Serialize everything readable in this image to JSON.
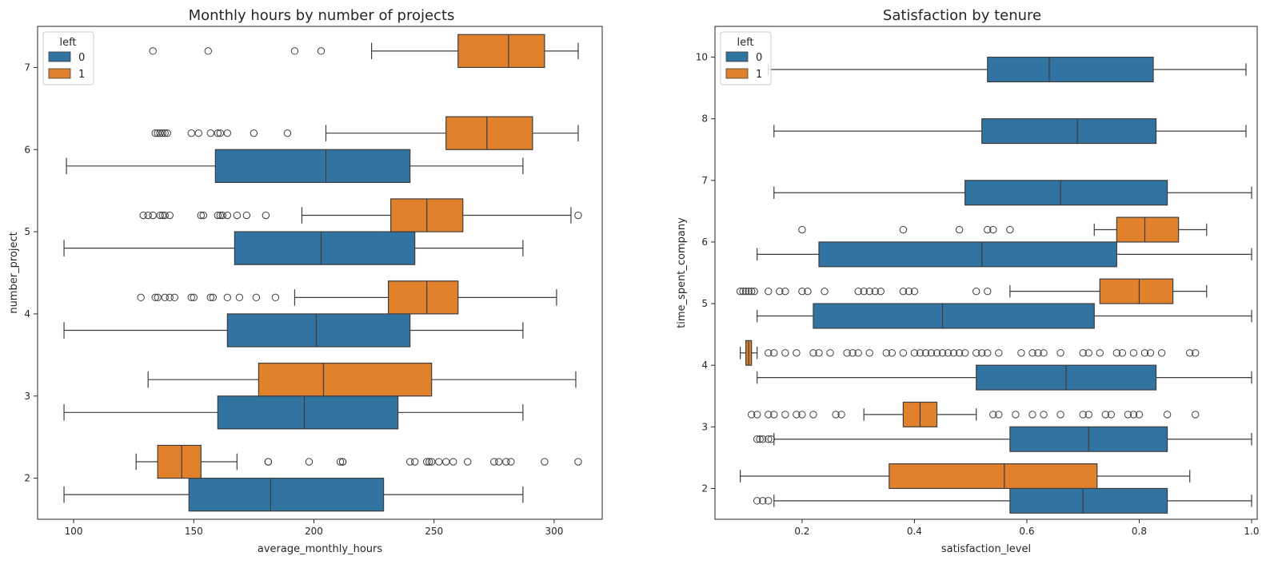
{
  "colors": {
    "left_0": "#3274a1",
    "left_1": "#e1812c",
    "line": "#3d3d3d"
  },
  "chart_data": [
    {
      "type": "boxplot",
      "orientation": "horizontal",
      "title": "Monthly hours by number of projects",
      "xlabel": "average_monthly_hours",
      "ylabel": "number_project",
      "xlim": [
        85,
        320
      ],
      "xticks": [
        100,
        150,
        200,
        250,
        300
      ],
      "categories": [
        "2",
        "3",
        "4",
        "5",
        "6",
        "7"
      ],
      "legend": {
        "title": "left",
        "placement": "upper-left",
        "entries": [
          "0",
          "1"
        ]
      },
      "series": [
        {
          "name": "0",
          "boxes": [
            {
              "category": "2",
              "whislo": 96,
              "q1": 148,
              "med": 182,
              "q3": 229,
              "whishi": 287,
              "fliers": []
            },
            {
              "category": "3",
              "whislo": 96,
              "q1": 160,
              "med": 196,
              "q3": 235,
              "whishi": 287,
              "fliers": []
            },
            {
              "category": "4",
              "whislo": 96,
              "q1": 164,
              "med": 201,
              "q3": 240,
              "whishi": 287,
              "fliers": []
            },
            {
              "category": "5",
              "whislo": 96,
              "q1": 167,
              "med": 203,
              "q3": 242,
              "whishi": 287,
              "fliers": []
            },
            {
              "category": "6",
              "whislo": 97,
              "q1": 159,
              "med": 205,
              "q3": 240,
              "whishi": 287,
              "fliers": []
            }
          ]
        },
        {
          "name": "1",
          "boxes": [
            {
              "category": "2",
              "whislo": 126,
              "q1": 135,
              "med": 145,
              "q3": 153,
              "whishi": 168,
              "fliers": [
                181,
                181,
                198,
                211,
                212,
                212,
                240,
                242,
                247,
                248,
                249,
                252,
                255,
                258,
                264,
                275,
                277,
                280,
                282,
                296,
                310
              ]
            },
            {
              "category": "3",
              "whislo": 131,
              "q1": 177,
              "med": 204,
              "q3": 249,
              "whishi": 309,
              "fliers": []
            },
            {
              "category": "4",
              "whislo": 192,
              "q1": 231,
              "med": 247,
              "q3": 260,
              "whishi": 301,
              "fliers": [
                128,
                134,
                135,
                138,
                140,
                142,
                149,
                150,
                157,
                158,
                164,
                169,
                176,
                184
              ]
            },
            {
              "category": "5",
              "whislo": 195,
              "q1": 232,
              "med": 247,
              "q3": 262,
              "whishi": 307,
              "fliers": [
                129,
                131,
                133,
                136,
                137,
                138,
                140,
                153,
                154,
                160,
                161,
                162,
                164,
                168,
                172,
                180,
                310
              ]
            },
            {
              "category": "6",
              "whislo": 205,
              "q1": 255,
              "med": 272,
              "q3": 291,
              "whishi": 310,
              "fliers": [
                134,
                135,
                136,
                137,
                138,
                139,
                149,
                152,
                157,
                160,
                161,
                164,
                175,
                189
              ]
            },
            {
              "category": "7",
              "whislo": 224,
              "q1": 260,
              "med": 281,
              "q3": 296,
              "whishi": 310,
              "fliers": [
                133,
                156,
                192,
                203
              ]
            }
          ]
        }
      ]
    },
    {
      "type": "boxplot",
      "orientation": "horizontal",
      "title": "Satisfaction by tenure",
      "xlabel": "satisfaction_level",
      "ylabel": "time_spent_company",
      "xlim": [
        0.045,
        1.01
      ],
      "xticks": [
        0.2,
        0.4,
        0.6,
        0.8,
        1.0
      ],
      "xtick_labels": [
        "0.2",
        "0.4",
        "0.6",
        "0.8",
        "1.0"
      ],
      "categories": [
        "2",
        "3",
        "4",
        "5",
        "6",
        "7",
        "8",
        "10"
      ],
      "legend": {
        "title": "left",
        "placement": "upper-left",
        "entries": [
          "0",
          "1"
        ]
      },
      "series": [
        {
          "name": "0",
          "boxes": [
            {
              "category": "2",
              "whislo": 0.15,
              "q1": 0.57,
              "med": 0.7,
              "q3": 0.85,
              "whishi": 1.0,
              "fliers": [
                0.12,
                0.13,
                0.14
              ]
            },
            {
              "category": "3",
              "whislo": 0.15,
              "q1": 0.57,
              "med": 0.71,
              "q3": 0.85,
              "whishi": 1.0,
              "fliers": [
                0.12,
                0.125,
                0.13,
                0.14,
                0.145
              ]
            },
            {
              "category": "4",
              "whislo": 0.12,
              "q1": 0.51,
              "med": 0.67,
              "q3": 0.83,
              "whishi": 1.0,
              "fliers": []
            },
            {
              "category": "5",
              "whislo": 0.12,
              "q1": 0.22,
              "med": 0.45,
              "q3": 0.72,
              "whishi": 1.0,
              "fliers": []
            },
            {
              "category": "6",
              "whislo": 0.12,
              "q1": 0.23,
              "med": 0.52,
              "q3": 0.76,
              "whishi": 1.0,
              "fliers": []
            },
            {
              "category": "7",
              "whislo": 0.15,
              "q1": 0.49,
              "med": 0.66,
              "q3": 0.85,
              "whishi": 1.0,
              "fliers": []
            },
            {
              "category": "8",
              "whislo": 0.15,
              "q1": 0.52,
              "med": 0.69,
              "q3": 0.83,
              "whishi": 0.99,
              "fliers": []
            },
            {
              "category": "10",
              "whislo": 0.14,
              "q1": 0.53,
              "med": 0.64,
              "q3": 0.825,
              "whishi": 0.99,
              "fliers": []
            }
          ]
        },
        {
          "name": "1",
          "boxes": [
            {
              "category": "2",
              "whislo": 0.09,
              "q1": 0.355,
              "med": 0.56,
              "q3": 0.725,
              "whishi": 0.89,
              "fliers": []
            },
            {
              "category": "3",
              "whislo": 0.31,
              "q1": 0.38,
              "med": 0.41,
              "q3": 0.44,
              "whishi": 0.51,
              "fliers": [
                0.11,
                0.12,
                0.14,
                0.15,
                0.17,
                0.19,
                0.2,
                0.22,
                0.26,
                0.27,
                0.54,
                0.55,
                0.58,
                0.61,
                0.63,
                0.66,
                0.7,
                0.71,
                0.74,
                0.75,
                0.78,
                0.79,
                0.8,
                0.85,
                0.9
              ]
            },
            {
              "category": "4",
              "whislo": 0.09,
              "q1": 0.1,
              "med": 0.105,
              "q3": 0.11,
              "whishi": 0.12,
              "fliers": [
                0.14,
                0.15,
                0.17,
                0.19,
                0.22,
                0.23,
                0.25,
                0.28,
                0.29,
                0.3,
                0.32,
                0.35,
                0.36,
                0.38,
                0.4,
                0.41,
                0.42,
                0.43,
                0.44,
                0.45,
                0.46,
                0.47,
                0.48,
                0.49,
                0.51,
                0.52,
                0.53,
                0.55,
                0.59,
                0.61,
                0.62,
                0.63,
                0.66,
                0.7,
                0.71,
                0.73,
                0.76,
                0.77,
                0.79,
                0.81,
                0.82,
                0.84,
                0.89,
                0.9
              ]
            },
            {
              "category": "5",
              "whislo": 0.57,
              "q1": 0.73,
              "med": 0.8,
              "q3": 0.86,
              "whishi": 0.92,
              "fliers": [
                0.09,
                0.095,
                0.1,
                0.105,
                0.11,
                0.115,
                0.14,
                0.16,
                0.17,
                0.2,
                0.21,
                0.24,
                0.3,
                0.31,
                0.32,
                0.33,
                0.34,
                0.38,
                0.39,
                0.4,
                0.51,
                0.53
              ]
            },
            {
              "category": "6",
              "whislo": 0.72,
              "q1": 0.76,
              "med": 0.81,
              "q3": 0.87,
              "whishi": 0.92,
              "fliers": [
                0.2,
                0.38,
                0.48,
                0.53,
                0.54,
                0.57
              ]
            }
          ]
        }
      ]
    }
  ]
}
